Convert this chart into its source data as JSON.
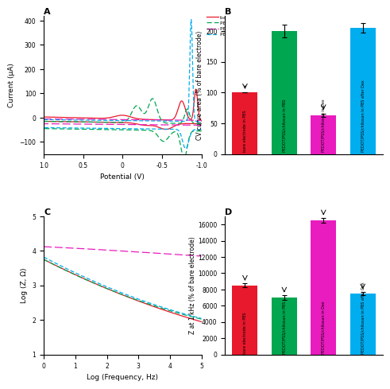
{
  "panel_A": {
    "title": "A",
    "xlabel": "Potential (V)",
    "ylabel": "Current (μA)",
    "xlim": [
      1.0,
      -1.0
    ],
    "ylim": [
      -150,
      420
    ],
    "yticks": [
      -100,
      0,
      100,
      200,
      300,
      400
    ],
    "xticks": [
      1.0,
      0.5,
      0.0,
      -0.5,
      -1.0
    ]
  },
  "panel_B": {
    "title": "B",
    "ylabel": "CV curve area (% of bare electrode)",
    "ylim": [
      0,
      225
    ],
    "yticks": [
      0,
      50,
      100,
      150,
      200
    ],
    "bars": [
      {
        "label": "bare electrode in PBS",
        "value": 100,
        "error": 0,
        "color": "#e8192c"
      },
      {
        "label": "PEDOT/PSS/chitosan in PBS",
        "value": 200,
        "error": 10,
        "color": "#00a650"
      },
      {
        "label": "PEDOT/PSS/chitosan in Dex",
        "value": 63,
        "error": 3,
        "color": "#e91cbf"
      },
      {
        "label": "PEDOT/PSS/chitosan in PBS after Dex",
        "value": 205,
        "error": 8,
        "color": "#00adef"
      }
    ],
    "arrow_bars": [
      0,
      2
    ],
    "arrow_labels": [
      "bare electrode in PBS",
      "PEDOT/PSS/chitosan in Dex"
    ]
  },
  "panel_C": {
    "title": "C",
    "xlabel": "Log (Frequency, Hz)",
    "ylabel": "Log (Z, Ω)",
    "xlim": [
      0,
      5
    ],
    "ylim": [
      1,
      5
    ],
    "yticks": [
      1,
      2,
      3,
      4,
      5
    ],
    "xticks": [
      0,
      1,
      2,
      3,
      4,
      5
    ]
  },
  "panel_D": {
    "title": "D",
    "ylabel": "Z at 1 kHz (% of bare electrode)",
    "ylim": [
      0,
      17000
    ],
    "yticks": [
      0,
      2000,
      4000,
      6000,
      8000,
      10000,
      12000,
      14000,
      16000
    ],
    "bars": [
      {
        "label": "bare electrode in PBS",
        "value": 8500,
        "error": 250,
        "color": "#e8192c"
      },
      {
        "label": "PEDOT/PSS/chitosan in PBS",
        "value": 7000,
        "error": 300,
        "color": "#00a650"
      },
      {
        "label": "PEDOT/PSS/chitosan in Dex",
        "value": 16500,
        "error": 300,
        "color": "#e91cbf"
      },
      {
        "label": "PEDOT/PSS/chitosan in PBS after Dex",
        "value": 7500,
        "error": 200,
        "color": "#00adef"
      }
    ],
    "arrow_bars": [
      0,
      1,
      2,
      3
    ]
  },
  "colors": {
    "red": "#e8192c",
    "green": "#00a650",
    "magenta": "#e91cbf",
    "cyan": "#00adef"
  },
  "legend_labels": [
    "bare electrode in PBS",
    "PEDOT/PSS/chitosan electrode in PBS",
    "PEDOT/PSS/chitosan electrode in Dex (2 h)",
    "PEDOT/PSS/chitosan electrode in PBS (2 h after Dex)"
  ]
}
